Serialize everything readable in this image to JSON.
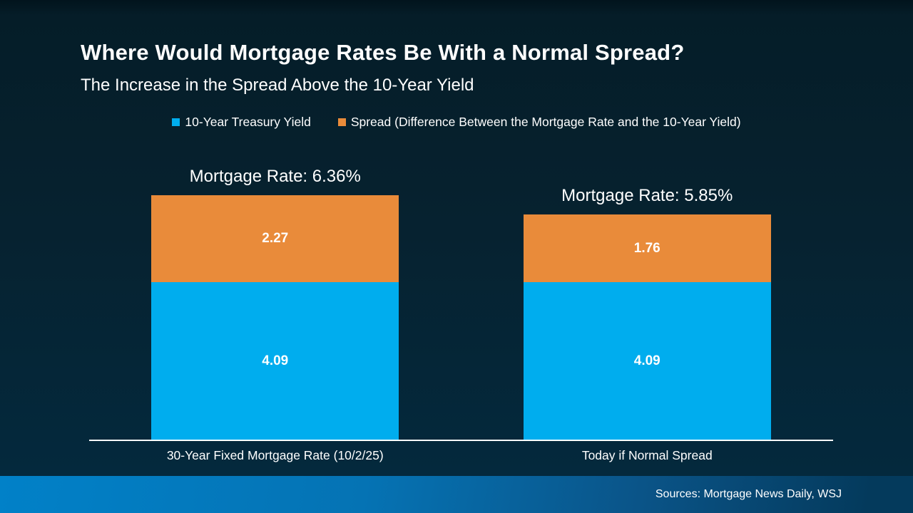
{
  "header": {
    "title": "Where Would Mortgage Rates Be With a Normal Spread?",
    "subtitle": "The Increase in the Spread Above the 10-Year Yield"
  },
  "footer": {
    "sources": "Sources: Mortgage News Daily, WSJ"
  },
  "colors": {
    "treasury_blue": "#00adee",
    "spread_orange": "#e98b3a",
    "background_top": "#051d28",
    "background_bottom": "#04293d",
    "footer_left": "#0181c8",
    "footer_right": "#043a5c",
    "text": "#ffffff"
  },
  "chart_data": {
    "type": "bar",
    "stacked": true,
    "title": "Where Would Mortgage Rates Be With a Normal Spread?",
    "subtitle": "The Increase in the Spread Above the 10-Year Yield",
    "categories": [
      "30-Year Fixed Mortgage Rate (10/2/25)",
      "Today if Normal Spread"
    ],
    "series": [
      {
        "name": "10-Year Treasury Yield",
        "color": "#00adee",
        "values": [
          4.09,
          4.09
        ]
      },
      {
        "name": "Spread (Difference Between the Mortgage Rate and the 10-Year Yield)",
        "color": "#e98b3a",
        "values": [
          2.27,
          1.76
        ]
      }
    ],
    "bar_labels": [
      "Mortgage Rate: 6.36%",
      "Mortgage Rate: 5.85%"
    ],
    "totals": [
      6.36,
      5.85
    ],
    "ylim": [
      0,
      7.3
    ],
    "grid": false,
    "legend_position": "top-center",
    "value_labels": "inside-center",
    "axis_line_color": "#ffffff"
  }
}
